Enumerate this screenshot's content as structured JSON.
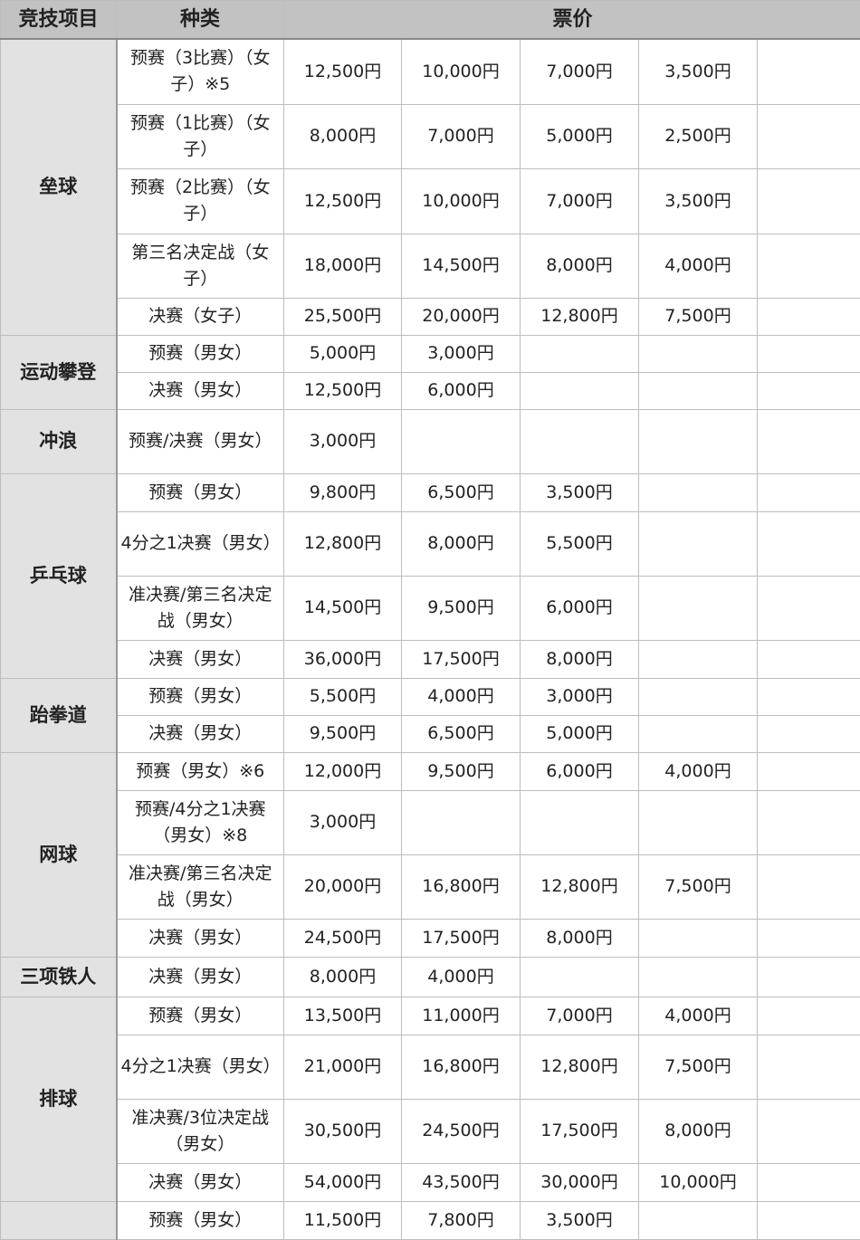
{
  "header": {
    "sport": "竞技项目",
    "kind": "种类",
    "price": "票价"
  },
  "groups": [
    {
      "sport": "垒球",
      "rows": [
        {
          "kind": "预赛（3比赛）（女子）※5",
          "prices": [
            "12,500円",
            "10,000円",
            "7,000円",
            "3,500円",
            ""
          ],
          "h": 72
        },
        {
          "kind": "预赛（1比赛）（女子）",
          "prices": [
            "8,000円",
            "7,000円",
            "5,000円",
            "2,500円",
            ""
          ],
          "h": 71
        },
        {
          "kind": "预赛（2比赛）（女子）",
          "prices": [
            "12,500円",
            "10,000円",
            "7,000円",
            "3,500円",
            ""
          ],
          "h": 72
        },
        {
          "kind": "第三名决定战（女子）",
          "prices": [
            "18,000円",
            "14,500円",
            "8,000円",
            "4,000円",
            ""
          ],
          "h": 71
        },
        {
          "kind": "决赛（女子）",
          "prices": [
            "25,500円",
            "20,000円",
            "12,800円",
            "7,500円",
            ""
          ],
          "h": 41
        }
      ]
    },
    {
      "sport": "运动攀登",
      "rows": [
        {
          "kind": "预赛（男女）",
          "prices": [
            "5,000円",
            "3,000円",
            "",
            "",
            ""
          ],
          "h": 41
        },
        {
          "kind": "决赛（男女）",
          "prices": [
            "12,500円",
            "6,000円",
            "",
            "",
            ""
          ],
          "h": 41
        }
      ]
    },
    {
      "sport": "冲浪",
      "rows": [
        {
          "kind": "预赛/决赛（男女）",
          "prices": [
            "3,000円",
            "",
            "",
            "",
            ""
          ],
          "h": 71
        }
      ]
    },
    {
      "sport": "乒乓球",
      "rows": [
        {
          "kind": "预赛（男女）",
          "prices": [
            "9,800円",
            "6,500円",
            "3,500円",
            "",
            ""
          ],
          "h": 42
        },
        {
          "kind": "4分之1决赛（男女）",
          "prices": [
            "12,800円",
            "8,000円",
            "5,500円",
            "",
            ""
          ],
          "h": 71
        },
        {
          "kind": "准决赛/第三名决定战（男女）",
          "prices": [
            "14,500円",
            "9,500円",
            "6,000円",
            "",
            ""
          ],
          "h": 71
        },
        {
          "kind": "决赛（男女）",
          "prices": [
            "36,000円",
            "17,500円",
            "8,000円",
            "",
            ""
          ],
          "h": 42
        }
      ]
    },
    {
      "sport": "跆拳道",
      "rows": [
        {
          "kind": "预赛（男女）",
          "prices": [
            "5,500円",
            "4,000円",
            "3,000円",
            "",
            ""
          ],
          "h": 41
        },
        {
          "kind": "决赛（男女）",
          "prices": [
            "9,500円",
            "6,500円",
            "5,000円",
            "",
            ""
          ],
          "h": 41
        }
      ]
    },
    {
      "sport": "网球",
      "rows": [
        {
          "kind": "预赛（男女）※6",
          "prices": [
            "12,000円",
            "9,500円",
            "6,000円",
            "4,000円",
            ""
          ],
          "h": 42
        },
        {
          "kind": "预赛/4分之1决赛（男女）※8",
          "prices": [
            "3,000円",
            "",
            "",
            "",
            ""
          ],
          "h": 71
        },
        {
          "kind": "准决赛/第三名决定战（男女）",
          "prices": [
            "20,000円",
            "16,800円",
            "12,800円",
            "7,500円",
            ""
          ],
          "h": 71
        },
        {
          "kind": "决赛（男女）",
          "prices": [
            "24,500円",
            "17,500円",
            "8,000円",
            "",
            ""
          ],
          "h": 42
        }
      ]
    },
    {
      "sport": "三项铁人",
      "rows": [
        {
          "kind": "决赛（男女）",
          "prices": [
            "8,000円",
            "4,000円",
            "",
            "",
            ""
          ],
          "h": 44
        }
      ]
    },
    {
      "sport": "排球",
      "rows": [
        {
          "kind": "预赛（男女）",
          "prices": [
            "13,500円",
            "11,000円",
            "7,000円",
            "4,000円",
            ""
          ],
          "h": 42
        },
        {
          "kind": "4分之1决赛（男女）",
          "prices": [
            "21,000円",
            "16,800円",
            "12,800円",
            "7,500円",
            ""
          ],
          "h": 71
        },
        {
          "kind": "准决赛/3位决定战（男女）",
          "prices": [
            "30,500円",
            "24,500円",
            "17,500円",
            "8,000円",
            ""
          ],
          "h": 71
        },
        {
          "kind": "决赛（男女）",
          "prices": [
            "54,000円",
            "43,500円",
            "30,000円",
            "10,000円",
            ""
          ],
          "h": 42
        }
      ]
    },
    {
      "sport": "",
      "rows": [
        {
          "kind": "预赛（男女）",
          "prices": [
            "11,500円",
            "7,800円",
            "3,500円",
            "",
            ""
          ],
          "h": 42
        }
      ]
    }
  ]
}
